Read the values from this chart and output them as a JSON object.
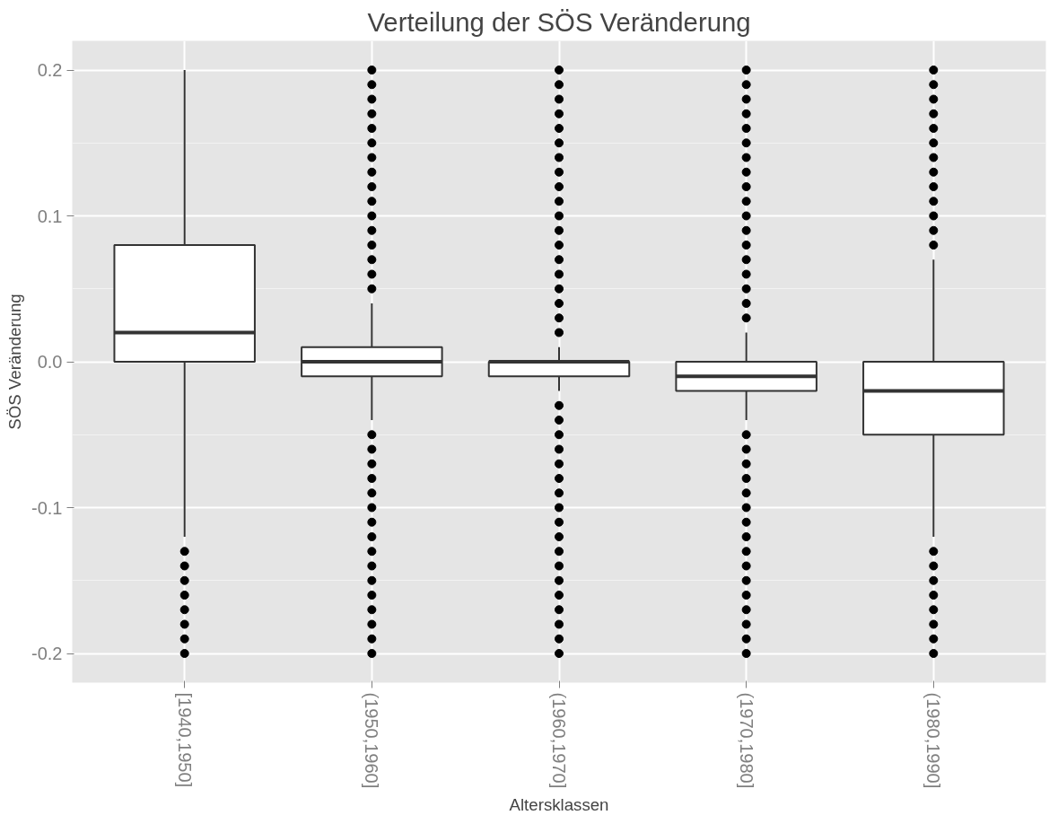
{
  "chart_data": {
    "type": "box",
    "title": "Verteilung der SÖS Veränderung",
    "xlabel": "Altersklassen",
    "ylabel": "SÖS Veränderung",
    "categories": [
      "[1940,1950]",
      "(1950,1960]",
      "(1960,1970]",
      "(1970,1980]",
      "(1980,1990]"
    ],
    "boxes": [
      {
        "low": -0.12,
        "q1": 0,
        "median": 0.02,
        "q3": 0.08,
        "high": 0.2,
        "outliers": [
          -0.13,
          -0.14,
          -0.15,
          -0.16,
          -0.17,
          -0.18,
          -0.19,
          -0.2
        ]
      },
      {
        "low": -0.04,
        "q1": -0.01,
        "median": 0,
        "q3": 0.01,
        "high": 0.04,
        "outliers": [
          0.05,
          0.06,
          0.07,
          0.08,
          0.09,
          0.1,
          0.11,
          0.12,
          0.13,
          0.14,
          0.15,
          0.16,
          0.17,
          0.18,
          0.19,
          0.2,
          -0.05,
          -0.06,
          -0.07,
          -0.08,
          -0.09,
          -0.1,
          -0.11,
          -0.12,
          -0.13,
          -0.14,
          -0.15,
          -0.16,
          -0.17,
          -0.18,
          -0.19,
          -0.2
        ]
      },
      {
        "low": -0.02,
        "q1": -0.01,
        "median": 0,
        "q3": 0,
        "high": 0.01,
        "outliers": [
          0.02,
          0.03,
          0.04,
          0.05,
          0.06,
          0.07,
          0.08,
          0.09,
          0.1,
          0.11,
          0.12,
          0.13,
          0.14,
          0.15,
          0.16,
          0.17,
          0.18,
          0.19,
          0.2,
          -0.03,
          -0.04,
          -0.05,
          -0.06,
          -0.07,
          -0.08,
          -0.09,
          -0.1,
          -0.11,
          -0.12,
          -0.13,
          -0.14,
          -0.15,
          -0.16,
          -0.17,
          -0.18,
          -0.19,
          -0.2
        ]
      },
      {
        "low": -0.04,
        "q1": -0.02,
        "median": -0.01,
        "q3": 0,
        "high": 0.02,
        "outliers": [
          0.03,
          0.04,
          0.05,
          0.06,
          0.07,
          0.08,
          0.09,
          0.1,
          0.11,
          0.12,
          0.13,
          0.14,
          0.15,
          0.16,
          0.17,
          0.18,
          0.19,
          0.2,
          -0.05,
          -0.06,
          -0.07,
          -0.08,
          -0.09,
          -0.1,
          -0.11,
          -0.12,
          -0.13,
          -0.14,
          -0.15,
          -0.16,
          -0.17,
          -0.18,
          -0.19,
          -0.2
        ]
      },
      {
        "low": -0.12,
        "q1": -0.05,
        "median": -0.02,
        "q3": 0,
        "high": 0.07,
        "outliers": [
          0.08,
          0.09,
          0.1,
          0.11,
          0.12,
          0.13,
          0.14,
          0.15,
          0.16,
          0.17,
          0.18,
          0.19,
          0.2,
          -0.13,
          -0.14,
          -0.15,
          -0.16,
          -0.17,
          -0.18,
          -0.19,
          -0.2
        ]
      }
    ],
    "ylim": [
      -0.22,
      0.22
    ],
    "yticks": [
      -0.2,
      -0.1,
      {
        "value": 0,
        "label": "0.0"
      },
      0.1,
      0.2
    ],
    "grid": true,
    "marker": "circle"
  }
}
